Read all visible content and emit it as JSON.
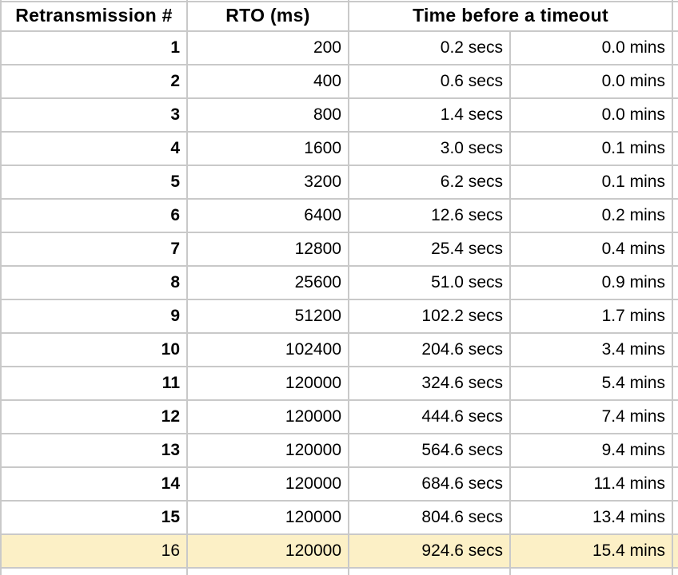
{
  "table": {
    "header": {
      "retransmission": "Retransmission #",
      "rto": "RTO (ms)",
      "timeout": "Time before a timeout"
    },
    "rows": [
      {
        "n": "1",
        "rto": "200",
        "secs": "0.2 secs",
        "mins": "0.0 mins",
        "highlighted": false
      },
      {
        "n": "2",
        "rto": "400",
        "secs": "0.6 secs",
        "mins": "0.0 mins",
        "highlighted": false
      },
      {
        "n": "3",
        "rto": "800",
        "secs": "1.4 secs",
        "mins": "0.0 mins",
        "highlighted": false
      },
      {
        "n": "4",
        "rto": "1600",
        "secs": "3.0 secs",
        "mins": "0.1 mins",
        "highlighted": false
      },
      {
        "n": "5",
        "rto": "3200",
        "secs": "6.2 secs",
        "mins": "0.1 mins",
        "highlighted": false
      },
      {
        "n": "6",
        "rto": "6400",
        "secs": "12.6 secs",
        "mins": "0.2 mins",
        "highlighted": false
      },
      {
        "n": "7",
        "rto": "12800",
        "secs": "25.4 secs",
        "mins": "0.4 mins",
        "highlighted": false
      },
      {
        "n": "8",
        "rto": "25600",
        "secs": "51.0 secs",
        "mins": "0.9 mins",
        "highlighted": false
      },
      {
        "n": "9",
        "rto": "51200",
        "secs": "102.2 secs",
        "mins": "1.7 mins",
        "highlighted": false
      },
      {
        "n": "10",
        "rto": "102400",
        "secs": "204.6 secs",
        "mins": "3.4 mins",
        "highlighted": false
      },
      {
        "n": "11",
        "rto": "120000",
        "secs": "324.6 secs",
        "mins": "5.4 mins",
        "highlighted": false
      },
      {
        "n": "12",
        "rto": "120000",
        "secs": "444.6 secs",
        "mins": "7.4 mins",
        "highlighted": false
      },
      {
        "n": "13",
        "rto": "120000",
        "secs": "564.6 secs",
        "mins": "9.4 mins",
        "highlighted": false
      },
      {
        "n": "14",
        "rto": "120000",
        "secs": "684.6 secs",
        "mins": "11.4 mins",
        "highlighted": false
      },
      {
        "n": "15",
        "rto": "120000",
        "secs": "804.6 secs",
        "mins": "13.4 mins",
        "highlighted": false
      },
      {
        "n": "16",
        "rto": "120000",
        "secs": "924.6 secs",
        "mins": "15.4 mins",
        "highlighted": true
      }
    ]
  },
  "colors": {
    "highlight": "#fcf0c6",
    "gridline": "#c9c9c9",
    "text": "#000000"
  }
}
